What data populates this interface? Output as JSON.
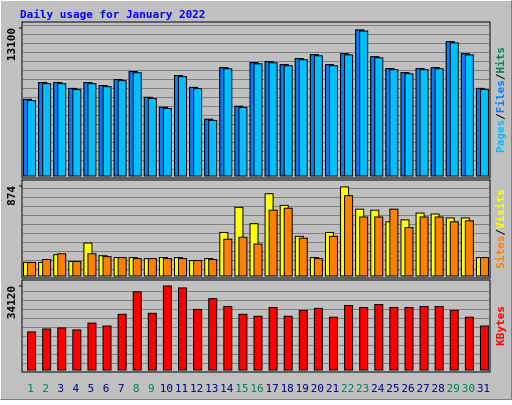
{
  "chart_data": {
    "type": "bar",
    "title": "Daily usage for January 2022",
    "categories": [
      "1",
      "2",
      "3",
      "4",
      "5",
      "6",
      "7",
      "8",
      "9",
      "10",
      "11",
      "12",
      "13",
      "14",
      "15",
      "16",
      "17",
      "18",
      "19",
      "20",
      "21",
      "22",
      "23",
      "24",
      "25",
      "26",
      "27",
      "28",
      "29",
      "30",
      "31"
    ],
    "label_colors": [
      "#00805c",
      "#00805c",
      "#000080",
      "#000080",
      "#000080",
      "#000080",
      "#000080",
      "#00805c",
      "#00805c",
      "#000080",
      "#000080",
      "#000080",
      "#000080",
      "#000080",
      "#00805c",
      "#00805c",
      "#000080",
      "#000080",
      "#000080",
      "#000080",
      "#000080",
      "#00805c",
      "#00805c",
      "#000080",
      "#000080",
      "#000080",
      "#000080",
      "#000080",
      "#00805c",
      "#00805c",
      "#000080"
    ],
    "legend_separator": "/",
    "panels": [
      {
        "ylim": [
          0,
          13100
        ],
        "yticks": [
          13100
        ],
        "series": [
          {
            "name": "Hits",
            "color": "#00805c",
            "values": [
              6780,
              8270,
              8270,
              7750,
              8270,
              8010,
              8540,
              9240,
              6960,
              6080,
              8890,
              7840,
              5020,
              9590,
              6170,
              10030,
              10120,
              9860,
              10390,
              10740,
              9860,
              10820,
              12930,
              10560,
              9510,
              9150,
              9510,
              9590,
              11880,
              10820,
              7750
            ]
          },
          {
            "name": "Files",
            "color": "#0080ff",
            "values": [
              6780,
              8270,
              8270,
              7750,
              8270,
              8010,
              8540,
              9240,
              6960,
              6080,
              8890,
              7840,
              5020,
              9590,
              6170,
              10030,
              10120,
              9860,
              10390,
              10740,
              9860,
              10820,
              12930,
              10560,
              9510,
              9150,
              9510,
              9590,
              11880,
              10820,
              7750
            ]
          },
          {
            "name": "Pages",
            "color": "#00c0ff",
            "values": [
              6680,
              8175,
              8175,
              7650,
              8175,
              7910,
              8440,
              9140,
              6860,
              5980,
              8790,
              7740,
              4920,
              9490,
              6070,
              9930,
              10020,
              9760,
              10290,
              10640,
              9760,
              10720,
              12830,
              10460,
              9410,
              9050,
              9410,
              9490,
              11780,
              10720,
              7650
            ]
          }
        ]
      },
      {
        "ylim": [
          0,
          874
        ],
        "yticks": [
          874
        ],
        "series": [
          {
            "name": "Visits",
            "color": "#ffff00",
            "values": [
              132,
              132,
              207,
              141,
              320,
              197,
              179,
              179,
              169,
              179,
              179,
              150,
              169,
              423,
              667,
              508,
              799,
              686,
              385,
              179,
              423,
              865,
              649,
              639,
              526,
              545,
              611,
              602,
              564,
              564,
              179
            ]
          },
          {
            "name": "Sites",
            "color": "#ff8000",
            "values": [
              132,
              160,
              216,
              141,
              216,
              188,
              179,
              169,
              169,
              169,
              169,
              150,
              160,
              357,
              376,
              310,
              639,
              658,
              367,
              169,
              385,
              780,
              573,
              573,
              649,
              470,
              573,
              573,
              526,
              536,
              179
            ]
          }
        ]
      },
      {
        "ylim": [
          0,
          34120
        ],
        "yticks": [
          34120
        ],
        "series": [
          {
            "name": "KBytes",
            "color": "#ff0000",
            "values": [
              15480,
              16670,
              17070,
              16270,
              19050,
              17860,
              22630,
              31760,
              23020,
              34120,
              33340,
              24610,
              28980,
              25800,
              22630,
              21830,
              25400,
              21830,
              24210,
              25010,
              21440,
              26190,
              25400,
              26600,
              25400,
              25400,
              25800,
              25800,
              24210,
              21440,
              17860
            ]
          }
        ]
      }
    ]
  }
}
